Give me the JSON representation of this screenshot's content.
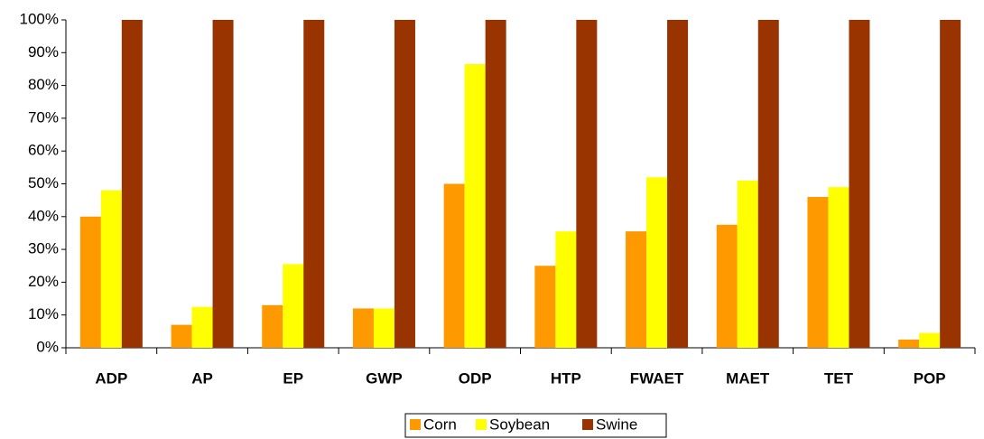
{
  "chart_data": {
    "type": "bar",
    "categories": [
      "ADP",
      "AP",
      "EP",
      "GWP",
      "ODP",
      "HTP",
      "FWAET",
      "MAET",
      "TET",
      "POP"
    ],
    "series": [
      {
        "name": "Corn",
        "color": "#ff9900",
        "values": [
          40,
          7,
          13,
          12,
          50,
          25,
          35.5,
          37.5,
          46,
          2.5
        ]
      },
      {
        "name": "Soybean",
        "color": "#ffff00",
        "values": [
          48,
          12.5,
          25.5,
          12,
          86.5,
          35.5,
          52,
          51,
          49,
          4.5
        ]
      },
      {
        "name": "Swine",
        "color": "#993300",
        "values": [
          100,
          100,
          100,
          100,
          100,
          100,
          100,
          100,
          100,
          100
        ]
      }
    ],
    "ylim": [
      0,
      100
    ],
    "yticks": [
      {
        "value": 0,
        "label": "0%"
      },
      {
        "value": 10,
        "label": "10%"
      },
      {
        "value": 20,
        "label": "20%"
      },
      {
        "value": 30,
        "label": "30%"
      },
      {
        "value": 40,
        "label": "40%"
      },
      {
        "value": 50,
        "label": "50%"
      },
      {
        "value": 60,
        "label": "60%"
      },
      {
        "value": 70,
        "label": "70%"
      },
      {
        "value": 80,
        "label": "80%"
      },
      {
        "value": 90,
        "label": "90%"
      },
      {
        "value": 100,
        "label": "100%"
      }
    ],
    "grid": false,
    "legend": "bottom"
  }
}
